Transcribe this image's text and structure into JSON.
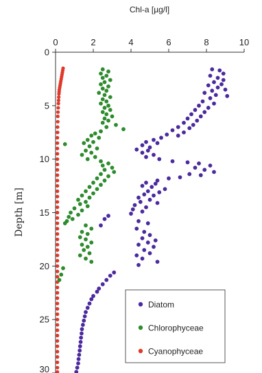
{
  "chart_data": {
    "type": "scatter",
    "title": "",
    "xlabel": "Chl-a [µg/l]",
    "ylabel": "Depth [m]",
    "x_axis_position": "top",
    "y_axis_inverted": true,
    "xlim": [
      0,
      10
    ],
    "ylim": [
      0,
      30
    ],
    "x_ticks": [
      0,
      2,
      4,
      6,
      8,
      10
    ],
    "y_ticks": [
      0,
      5,
      10,
      15,
      20,
      25,
      30
    ],
    "grid": false,
    "legend_position": "bottom-right",
    "series": [
      {
        "name": "Diatom",
        "color": "#4b2a9e",
        "points": [
          [
            8.3,
            1.6
          ],
          [
            8.7,
            1.7
          ],
          [
            8.9,
            2.0
          ],
          [
            8.2,
            2.2
          ],
          [
            8.6,
            2.4
          ],
          [
            8.9,
            2.6
          ],
          [
            8.4,
            2.8
          ],
          [
            8.8,
            3.0
          ],
          [
            8.1,
            3.1
          ],
          [
            8.6,
            3.3
          ],
          [
            9.0,
            3.5
          ],
          [
            8.3,
            3.6
          ],
          [
            7.9,
            3.8
          ],
          [
            8.5,
            4.0
          ],
          [
            9.1,
            4.1
          ],
          [
            8.2,
            4.3
          ],
          [
            7.8,
            4.6
          ],
          [
            8.4,
            4.8
          ],
          [
            7.6,
            5.0
          ],
          [
            8.1,
            5.2
          ],
          [
            7.4,
            5.4
          ],
          [
            7.9,
            5.6
          ],
          [
            7.2,
            5.8
          ],
          [
            7.7,
            6.0
          ],
          [
            7.0,
            6.2
          ],
          [
            7.5,
            6.4
          ],
          [
            6.8,
            6.6
          ],
          [
            7.3,
            6.8
          ],
          [
            6.5,
            7.0
          ],
          [
            7.1,
            7.1
          ],
          [
            6.2,
            7.3
          ],
          [
            6.8,
            7.5
          ],
          [
            5.9,
            7.7
          ],
          [
            6.5,
            7.8
          ],
          [
            5.6,
            8.0
          ],
          [
            5.2,
            8.2
          ],
          [
            4.8,
            8.4
          ],
          [
            5.4,
            8.5
          ],
          [
            4.6,
            8.7
          ],
          [
            5.0,
            8.9
          ],
          [
            4.3,
            9.1
          ],
          [
            4.9,
            9.2
          ],
          [
            4.6,
            9.4
          ],
          [
            5.2,
            9.6
          ],
          [
            4.8,
            9.8
          ],
          [
            5.5,
            10.0
          ],
          [
            6.2,
            10.2
          ],
          [
            7.0,
            10.3
          ],
          [
            7.6,
            10.4
          ],
          [
            8.2,
            10.6
          ],
          [
            7.4,
            10.8
          ],
          [
            7.9,
            11.0
          ],
          [
            8.4,
            11.2
          ],
          [
            7.1,
            11.4
          ],
          [
            7.7,
            11.5
          ],
          [
            6.6,
            11.7
          ],
          [
            6.0,
            11.8
          ],
          [
            5.4,
            12.0
          ],
          [
            4.8,
            12.2
          ],
          [
            5.3,
            12.3
          ],
          [
            4.6,
            12.5
          ],
          [
            5.1,
            12.6
          ],
          [
            5.8,
            12.8
          ],
          [
            4.9,
            13.0
          ],
          [
            5.5,
            13.1
          ],
          [
            4.7,
            13.3
          ],
          [
            5.2,
            13.4
          ],
          [
            4.4,
            13.6
          ],
          [
            5.0,
            13.8
          ],
          [
            4.5,
            14.0
          ],
          [
            5.4,
            14.1
          ],
          [
            4.2,
            14.3
          ],
          [
            4.8,
            14.5
          ],
          [
            4.1,
            14.7
          ],
          [
            4.6,
            14.9
          ],
          [
            4.0,
            15.1
          ],
          [
            2.8,
            15.3
          ],
          [
            2.6,
            15.6
          ],
          [
            4.4,
            15.8
          ],
          [
            4.9,
            16.0
          ],
          [
            2.4,
            16.2
          ],
          [
            4.3,
            16.5
          ],
          [
            4.7,
            16.8
          ],
          [
            5.0,
            17.1
          ],
          [
            4.6,
            17.4
          ],
          [
            5.3,
            17.6
          ],
          [
            4.9,
            17.8
          ],
          [
            4.4,
            18.0
          ],
          [
            5.2,
            18.2
          ],
          [
            4.7,
            18.5
          ],
          [
            5.0,
            18.8
          ],
          [
            4.3,
            19.0
          ],
          [
            4.6,
            19.3
          ],
          [
            5.4,
            19.6
          ],
          [
            4.4,
            19.9
          ],
          [
            3.1,
            20.6
          ],
          [
            2.9,
            20.9
          ],
          [
            2.7,
            21.3
          ],
          [
            2.5,
            21.7
          ],
          [
            2.3,
            22.1
          ],
          [
            2.2,
            22.4
          ],
          [
            2.0,
            22.8
          ],
          [
            1.9,
            23.1
          ],
          [
            1.8,
            23.5
          ],
          [
            1.7,
            23.9
          ],
          [
            1.6,
            24.3
          ],
          [
            1.55,
            24.7
          ],
          [
            1.5,
            25.1
          ],
          [
            1.45,
            25.5
          ],
          [
            1.4,
            25.9
          ],
          [
            1.38,
            26.3
          ],
          [
            1.35,
            26.7
          ],
          [
            1.33,
            27.1
          ],
          [
            1.3,
            27.5
          ],
          [
            1.28,
            27.9
          ],
          [
            1.25,
            28.3
          ],
          [
            1.22,
            28.7
          ],
          [
            1.2,
            29.1
          ],
          [
            1.15,
            29.5
          ],
          [
            1.1,
            29.9
          ]
        ]
      },
      {
        "name": "Chlorophyceae",
        "color": "#2e8b2e",
        "points": [
          [
            2.5,
            1.6
          ],
          [
            2.8,
            1.8
          ],
          [
            2.4,
            2.0
          ],
          [
            2.7,
            2.2
          ],
          [
            2.5,
            2.4
          ],
          [
            2.9,
            2.6
          ],
          [
            2.6,
            2.8
          ],
          [
            2.4,
            3.0
          ],
          [
            2.8,
            3.2
          ],
          [
            2.5,
            3.4
          ],
          [
            2.7,
            3.6
          ],
          [
            2.3,
            3.8
          ],
          [
            2.6,
            4.0
          ],
          [
            2.9,
            4.2
          ],
          [
            2.5,
            4.4
          ],
          [
            2.7,
            4.6
          ],
          [
            2.4,
            4.8
          ],
          [
            2.8,
            5.0
          ],
          [
            2.6,
            5.2
          ],
          [
            2.9,
            5.4
          ],
          [
            2.5,
            5.6
          ],
          [
            2.7,
            5.8
          ],
          [
            3.0,
            6.0
          ],
          [
            2.6,
            6.2
          ],
          [
            2.8,
            6.4
          ],
          [
            2.5,
            6.6
          ],
          [
            3.2,
            6.8
          ],
          [
            2.7,
            7.0
          ],
          [
            3.6,
            7.2
          ],
          [
            2.4,
            7.4
          ],
          [
            2.1,
            7.6
          ],
          [
            1.9,
            7.8
          ],
          [
            2.3,
            8.0
          ],
          [
            1.7,
            8.2
          ],
          [
            2.0,
            8.4
          ],
          [
            1.5,
            8.5
          ],
          [
            0.5,
            8.6
          ],
          [
            1.8,
            8.8
          ],
          [
            2.2,
            9.0
          ],
          [
            1.6,
            9.2
          ],
          [
            1.9,
            9.4
          ],
          [
            1.4,
            9.6
          ],
          [
            2.1,
            9.8
          ],
          [
            1.7,
            10.0
          ],
          [
            2.4,
            10.2
          ],
          [
            2.8,
            10.4
          ],
          [
            2.5,
            10.6
          ],
          [
            3.0,
            10.8
          ],
          [
            2.6,
            11.0
          ],
          [
            3.1,
            11.2
          ],
          [
            2.4,
            11.4
          ],
          [
            2.8,
            11.6
          ],
          [
            2.2,
            11.8
          ],
          [
            2.6,
            12.0
          ],
          [
            2.0,
            12.2
          ],
          [
            2.4,
            12.4
          ],
          [
            1.8,
            12.6
          ],
          [
            2.2,
            12.8
          ],
          [
            1.6,
            13.0
          ],
          [
            2.0,
            13.2
          ],
          [
            1.4,
            13.4
          ],
          [
            1.8,
            13.6
          ],
          [
            1.2,
            13.8
          ],
          [
            1.6,
            14.0
          ],
          [
            1.3,
            14.2
          ],
          [
            1.7,
            14.4
          ],
          [
            1.0,
            14.6
          ],
          [
            1.4,
            14.8
          ],
          [
            0.8,
            15.0
          ],
          [
            1.2,
            15.2
          ],
          [
            0.7,
            15.4
          ],
          [
            0.9,
            15.6
          ],
          [
            0.6,
            15.8
          ],
          [
            0.5,
            16.0
          ],
          [
            1.6,
            16.2
          ],
          [
            1.9,
            16.5
          ],
          [
            1.4,
            16.8
          ],
          [
            1.7,
            17.0
          ],
          [
            1.3,
            17.3
          ],
          [
            1.6,
            17.5
          ],
          [
            1.9,
            17.8
          ],
          [
            1.4,
            18.0
          ],
          [
            1.7,
            18.2
          ],
          [
            1.5,
            18.5
          ],
          [
            1.8,
            18.8
          ],
          [
            1.3,
            19.0
          ],
          [
            1.6,
            19.3
          ],
          [
            1.9,
            19.6
          ],
          [
            0.4,
            20.2
          ],
          [
            0.3,
            20.8
          ],
          [
            0.2,
            21.3
          ]
        ]
      },
      {
        "name": "Cyanophyceae",
        "color": "#e0392a",
        "points": [
          [
            0.4,
            1.5
          ],
          [
            0.38,
            1.7
          ],
          [
            0.36,
            1.9
          ],
          [
            0.34,
            2.1
          ],
          [
            0.32,
            2.3
          ],
          [
            0.3,
            2.5
          ],
          [
            0.28,
            2.7
          ],
          [
            0.26,
            2.9
          ],
          [
            0.24,
            3.1
          ],
          [
            0.22,
            3.3
          ],
          [
            0.2,
            3.5
          ],
          [
            0.19,
            3.7
          ],
          [
            0.18,
            3.9
          ],
          [
            0.17,
            4.2
          ],
          [
            0.16,
            4.5
          ],
          [
            0.15,
            4.8
          ],
          [
            0.14,
            5.2
          ],
          [
            0.13,
            5.6
          ],
          [
            0.12,
            6.0
          ],
          [
            0.12,
            6.5
          ],
          [
            0.11,
            7.0
          ],
          [
            0.11,
            7.5
          ],
          [
            0.1,
            8.0
          ],
          [
            0.1,
            8.5
          ],
          [
            0.1,
            9.0
          ],
          [
            0.1,
            9.5
          ],
          [
            0.1,
            10.0
          ],
          [
            0.1,
            10.5
          ],
          [
            0.1,
            11.0
          ],
          [
            0.1,
            11.5
          ],
          [
            0.1,
            12.0
          ],
          [
            0.1,
            12.5
          ],
          [
            0.1,
            13.0
          ],
          [
            0.1,
            13.5
          ],
          [
            0.1,
            14.0
          ],
          [
            0.1,
            14.5
          ],
          [
            0.1,
            15.0
          ],
          [
            0.1,
            15.5
          ],
          [
            0.1,
            16.0
          ],
          [
            0.1,
            16.5
          ],
          [
            0.1,
            17.0
          ],
          [
            0.1,
            17.5
          ],
          [
            0.1,
            18.0
          ],
          [
            0.1,
            18.5
          ],
          [
            0.1,
            19.0
          ],
          [
            0.1,
            19.5
          ],
          [
            0.1,
            20.0
          ],
          [
            0.1,
            20.5
          ],
          [
            0.1,
            21.0
          ],
          [
            0.1,
            21.5
          ],
          [
            0.1,
            22.0
          ],
          [
            0.1,
            22.5
          ],
          [
            0.1,
            23.0
          ],
          [
            0.1,
            23.5
          ],
          [
            0.1,
            24.0
          ],
          [
            0.1,
            24.5
          ],
          [
            0.1,
            25.0
          ],
          [
            0.1,
            25.5
          ],
          [
            0.1,
            26.0
          ],
          [
            0.1,
            26.5
          ],
          [
            0.1,
            27.0
          ],
          [
            0.1,
            27.5
          ],
          [
            0.1,
            28.0
          ],
          [
            0.1,
            28.5
          ],
          [
            0.1,
            29.0
          ],
          [
            0.1,
            29.5
          ],
          [
            0.1,
            29.9
          ]
        ]
      }
    ]
  }
}
